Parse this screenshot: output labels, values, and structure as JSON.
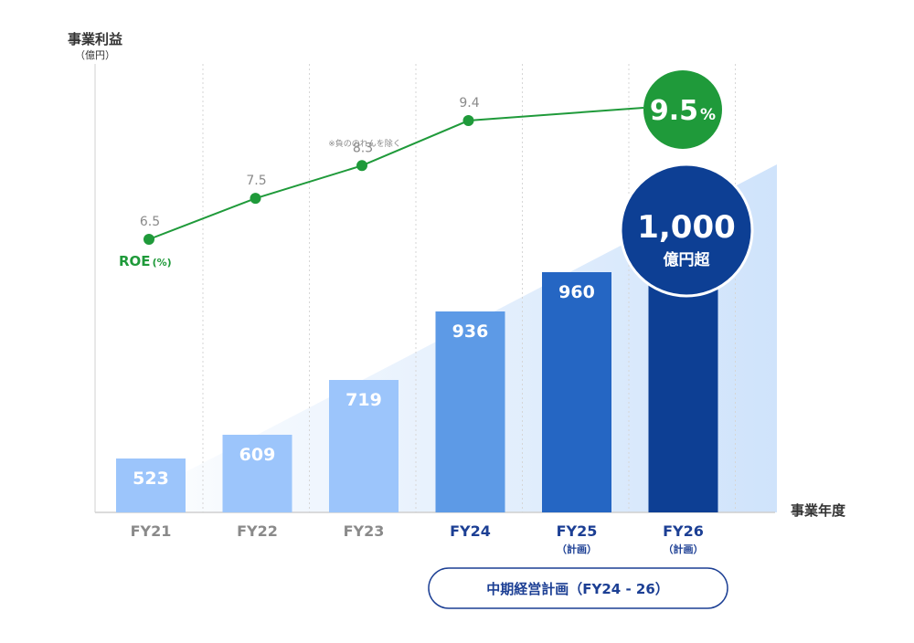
{
  "chart_data": {
    "type": "bar",
    "ylabel": "事業利益",
    "yunit": "（億円）",
    "xlabel": "事業年度",
    "categories": [
      "FY21",
      "FY22",
      "FY23",
      "FY24",
      "FY25",
      "FY26"
    ],
    "category_notes": [
      "",
      "",
      "",
      "",
      "（計画）",
      "（計画）"
    ],
    "values": [
      523,
      609,
      719,
      936,
      960,
      1000
    ],
    "value_labels": [
      "523",
      "609",
      "719",
      "936",
      "960",
      ""
    ],
    "bar_colors": [
      "#9cc5fb",
      "#9cc5fb",
      "#9cc5fb",
      "#5d9ae6",
      "#2566c3",
      "#0d3f94"
    ],
    "ylim": [
      0,
      1100
    ],
    "grid": "vertical-dotted",
    "roe": {
      "label": "ROE",
      "label_unit": "(%)",
      "x": [
        "FY21",
        "FY22",
        "FY23",
        "FY24",
        "FY26"
      ],
      "values": [
        6.5,
        7.5,
        8.3,
        9.4,
        9.5
      ],
      "value_labels": [
        "6.5",
        "7.5",
        "8.3",
        "9.4",
        ""
      ],
      "note": "※負ののれんを除く",
      "color": "#1f9a3a"
    },
    "target_roe": {
      "value": "9.5",
      "unit": "%"
    },
    "target_profit": {
      "value": "1,000",
      "unit": "億円超"
    },
    "plan_box": {
      "label": "中期経営計画（FY24 - 26）"
    }
  }
}
